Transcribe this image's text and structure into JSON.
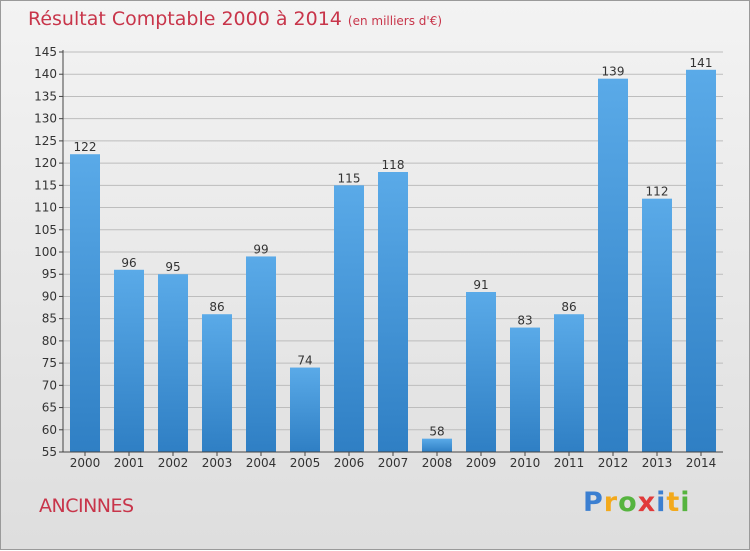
{
  "chart_data": {
    "type": "bar",
    "title": "Résultat Comptable 2000 à 2014",
    "unit_label": "(en milliers d'€)",
    "categories": [
      "2000",
      "2001",
      "2002",
      "2003",
      "2004",
      "2005",
      "2006",
      "2007",
      "2008",
      "2009",
      "2010",
      "2011",
      "2012",
      "2013",
      "2014"
    ],
    "values": [
      122,
      96,
      95,
      86,
      99,
      74,
      115,
      118,
      58,
      91,
      83,
      86,
      139,
      112,
      141
    ],
    "ylim": [
      55,
      145
    ],
    "ytick_step": 5,
    "xlabel": "",
    "ylabel": "",
    "grid": true,
    "bar_color": "#3b8fd6"
  },
  "place_name": "ANCINNES",
  "logo": {
    "text": "Proxiti",
    "letters": [
      {
        "char": "P",
        "color": "#3b7fd1"
      },
      {
        "char": "r",
        "color": "#f3a91b"
      },
      {
        "char": "o",
        "color": "#56b43f"
      },
      {
        "char": "x",
        "color": "#e13a3a"
      },
      {
        "char": "i",
        "color": "#3b7fd1"
      },
      {
        "char": "t",
        "color": "#f3a91b"
      },
      {
        "char": "i",
        "color": "#56b43f"
      }
    ]
  },
  "colors": {
    "title": "#c8354a",
    "grid": "#bdbdbd",
    "axis": "#444444",
    "bar_light": "#5aaae8",
    "bar_dark": "#2f7fc4"
  }
}
